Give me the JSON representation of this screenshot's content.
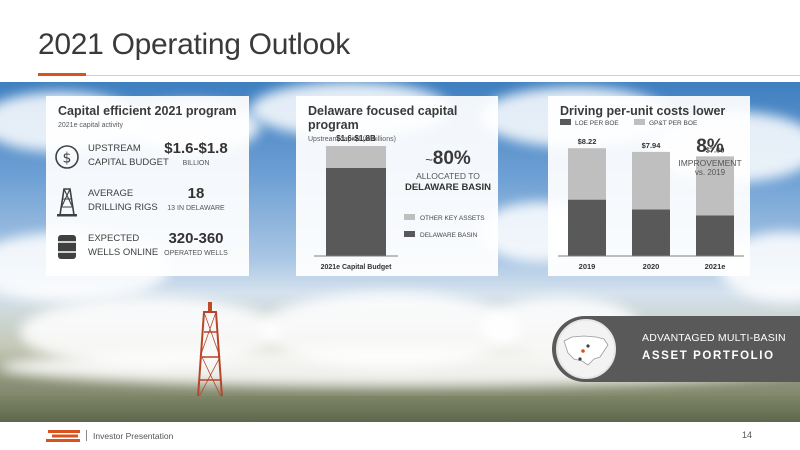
{
  "slide": {
    "title": "2021 Operating Outlook",
    "accent_color": "#d9531e"
  },
  "panel_program": {
    "title": "Capital efficient 2021 program",
    "subtitle": "2021e capital activity",
    "rows": [
      {
        "icon": "dollar-circle-icon",
        "label_line1": "UPSTREAM",
        "label_line2": "CAPITAL BUDGET",
        "value": "$1.6-$1.8",
        "note": "BILLION"
      },
      {
        "icon": "drilling-rig-icon",
        "label_line1": "AVERAGE",
        "label_line2": "DRILLING RIGS",
        "value": "18",
        "note": "13 IN DELAWARE"
      },
      {
        "icon": "barrel-icon",
        "label_line1": "EXPECTED",
        "label_line2": "WELLS ONLINE",
        "value": "320-360",
        "note": "OPERATED WELLS"
      }
    ]
  },
  "panel_delaware": {
    "title": "Delaware focused capital program",
    "subtitle": "Upstream capital (in billions)",
    "bar_label": "$1.6-$1.8B",
    "x_label": "2021e Capital Budget",
    "callout_prefix": "~",
    "callout_value": "80%",
    "callout_line1": "ALLOCATED TO",
    "callout_line2": "DELAWARE BASIN",
    "legend": [
      "OTHER KEY ASSETS",
      "DELAWARE BASIN"
    ]
  },
  "panel_costs": {
    "title": "Driving per-unit costs lower",
    "legend": [
      "LOE PER BOE",
      "GP&T PER BOE"
    ],
    "improvement_value": "8%",
    "improvement_line1": "IMPROVEMENT",
    "improvement_line2": "vs. 2019"
  },
  "chart_data": [
    {
      "type": "bar",
      "categories": [
        "2021e Capital Budget"
      ],
      "series": [
        {
          "name": "DELAWARE BASIN",
          "values": [
            0.8
          ],
          "color": "#595959"
        },
        {
          "name": "OTHER KEY ASSETS",
          "values": [
            0.2
          ],
          "color": "#bfbfbf"
        }
      ],
      "stacked": true,
      "data_labels": [
        "$1.6-$1.8B"
      ],
      "title": "Delaware focused capital program",
      "subtitle": "Upstream capital (in billions)",
      "legend": "right"
    },
    {
      "type": "bar",
      "categories": [
        "2019",
        "2020",
        "2021e"
      ],
      "series": [
        {
          "name": "LOE PER BOE",
          "values": [
            4.3,
            3.55,
            3.1
          ],
          "color": "#595959"
        },
        {
          "name": "GP&T PER BOE",
          "values": [
            3.92,
            4.39,
            4.5
          ],
          "color": "#bfbfbf"
        }
      ],
      "stacked": true,
      "data_labels": [
        "$8.22",
        "$7.94",
        "$7.60"
      ],
      "totals": [
        8.22,
        7.94,
        7.6
      ],
      "title": "Driving per-unit costs lower",
      "ylim": [
        0,
        9
      ],
      "legend": "top-left"
    }
  ],
  "badge": {
    "line1": "ADVANTAGED MULTI-BASIN",
    "line2": "ASSET PORTFOLIO"
  },
  "footer": {
    "text": "Investor Presentation",
    "page_number": "14"
  }
}
